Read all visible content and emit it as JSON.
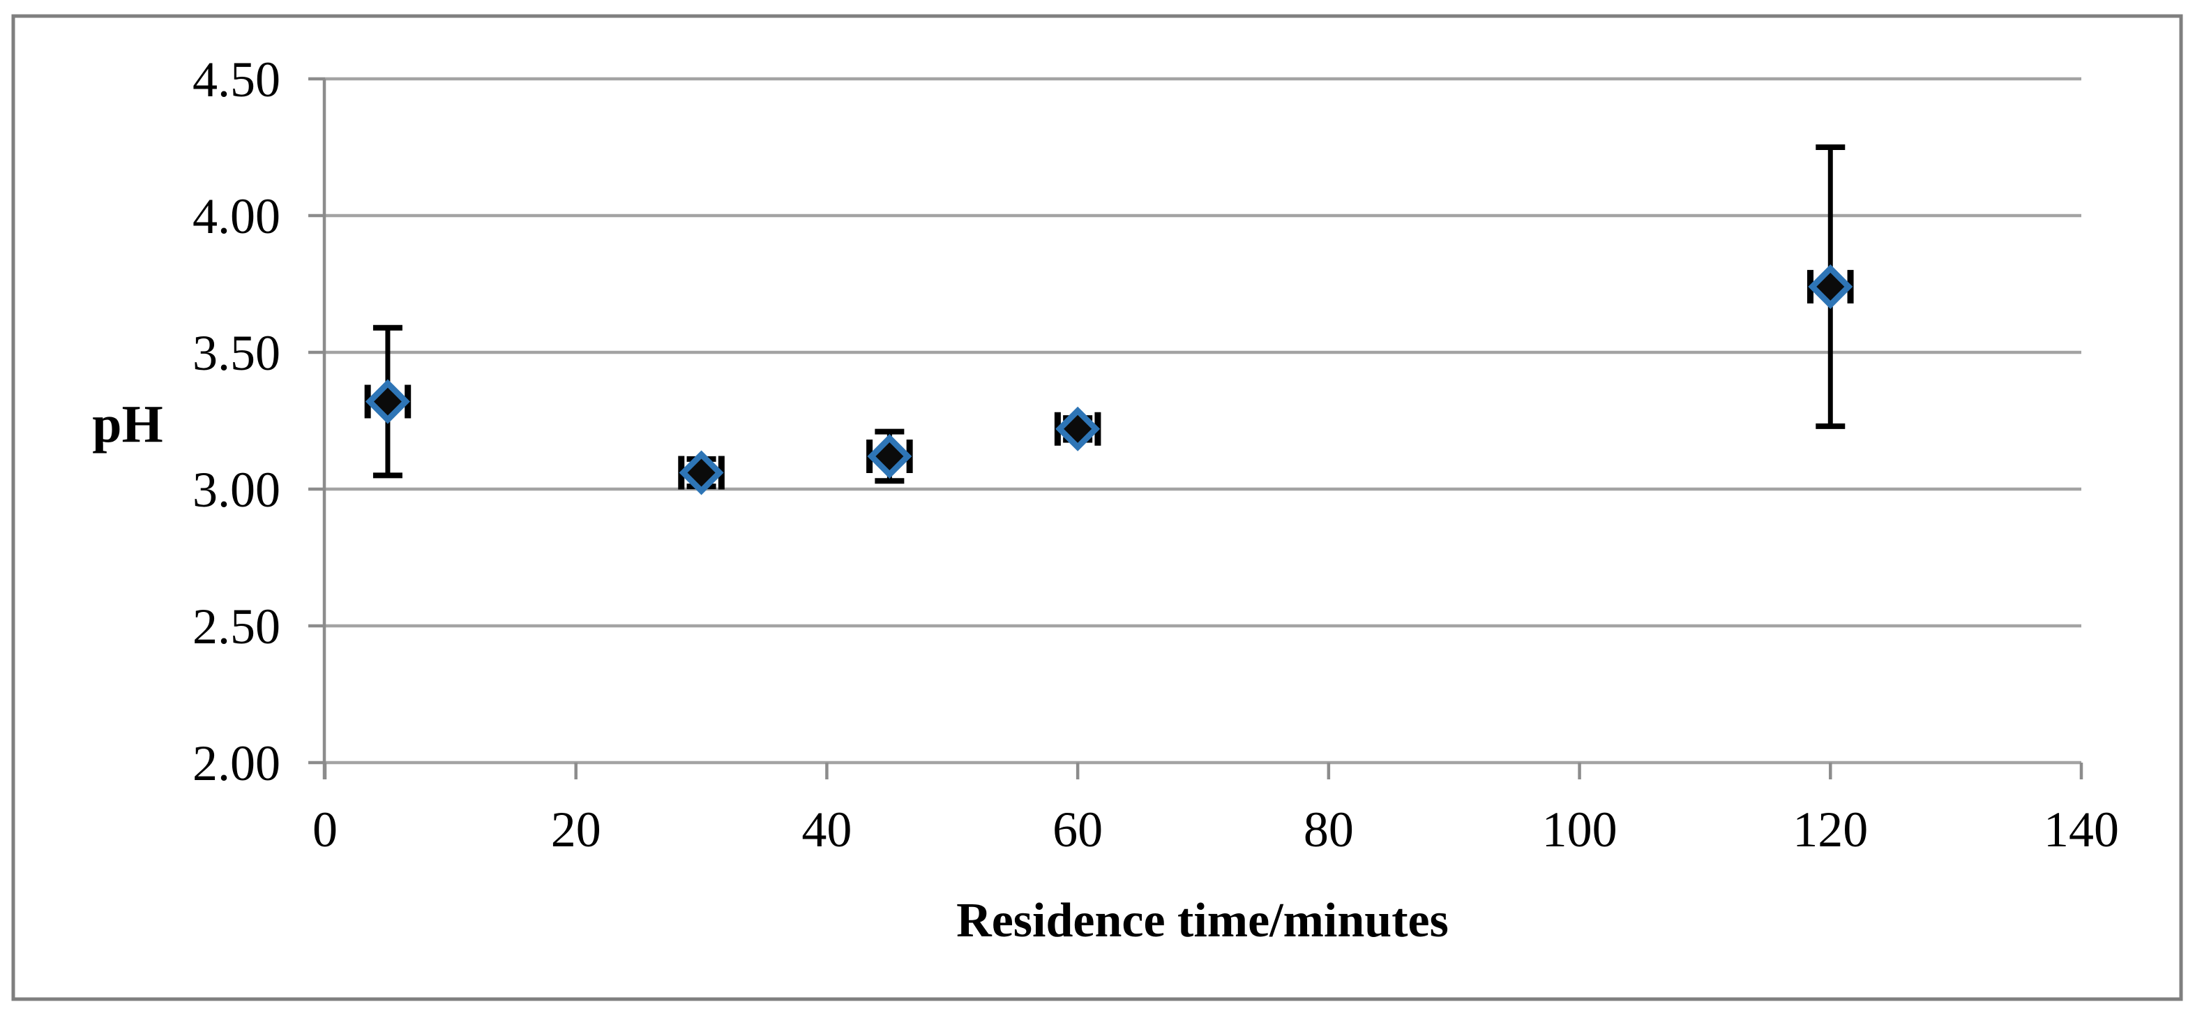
{
  "chart_data": {
    "type": "scatter",
    "title": "",
    "xlabel": "Residence time/minutes",
    "ylabel": "pH",
    "xlim": [
      0,
      140
    ],
    "ylim": [
      2.0,
      4.5
    ],
    "x_ticks": [
      0,
      20,
      40,
      60,
      80,
      100,
      120,
      140
    ],
    "x_tick_labels": [
      "0",
      "20",
      "40",
      "60",
      "80",
      "100",
      "120",
      "140"
    ],
    "y_ticks": [
      2.0,
      2.5,
      3.0,
      3.5,
      4.0,
      4.5
    ],
    "y_tick_labels": [
      "2.00",
      "2.50",
      "3.00",
      "3.50",
      "4.00",
      "4.50"
    ],
    "grid": "horizontal-only",
    "legend": "none",
    "series": [
      {
        "name": "pH",
        "marker": "diamond",
        "x_err": 1.6,
        "points": [
          {
            "x": 5,
            "y": 3.32,
            "y_err_plus": 0.27,
            "y_err_minus": 0.27
          },
          {
            "x": 30,
            "y": 3.06,
            "y_err_plus": 0.05,
            "y_err_minus": 0.05
          },
          {
            "x": 45,
            "y": 3.12,
            "y_err_plus": 0.09,
            "y_err_minus": 0.09
          },
          {
            "x": 60,
            "y": 3.22,
            "y_err_plus": 0.04,
            "y_err_minus": 0.04
          },
          {
            "x": 120,
            "y": 3.74,
            "y_err_plus": 0.51,
            "y_err_minus": 0.51
          }
        ]
      }
    ],
    "colors": {
      "marker_fill": "#0b0b0b",
      "marker_stroke": "#2E75B6",
      "error_bar": "#000000",
      "gridline": "#A3A3A3",
      "axis": "#8C8C8C",
      "border": "#7F7F7F",
      "text": "#000000",
      "background": "#FFFFFF"
    }
  }
}
